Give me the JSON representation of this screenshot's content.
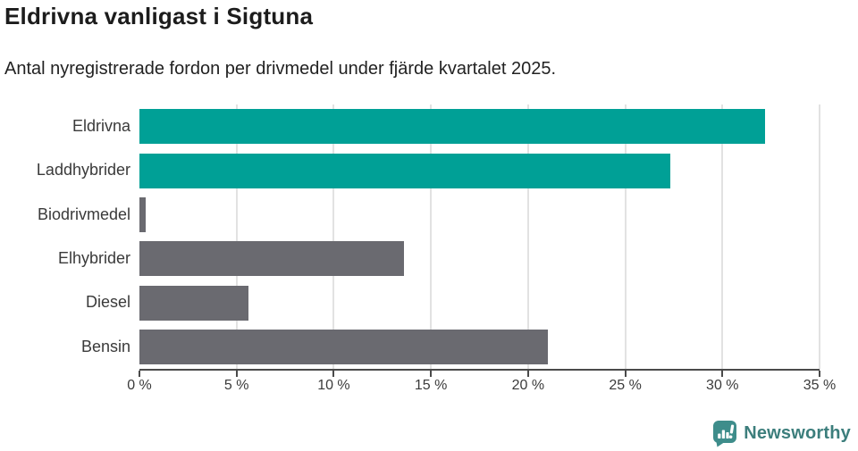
{
  "title": "Eldrivna vanligast i Sigtuna",
  "subtitle": "Antal nyregistrerade fordon per drivmedel under fjärde kvartalet 2025.",
  "chart_data": {
    "type": "bar",
    "orientation": "horizontal",
    "title": "Eldrivna vanligast i Sigtuna",
    "subtitle": "Antal nyregistrerade fordon per drivmedel under fjärde kvartalet 2025.",
    "categories": [
      "Eldrivna",
      "Laddhybrider",
      "Biodrivmedel",
      "Elhybrider",
      "Diesel",
      "Bensin"
    ],
    "values": [
      32.2,
      27.3,
      0.3,
      13.6,
      5.6,
      21.0
    ],
    "unit": "%",
    "xlim": [
      0,
      35
    ],
    "x_ticks": [
      "0 %",
      "5 %",
      "10 %",
      "15 %",
      "20 %",
      "25 %",
      "30 %",
      "35 %"
    ],
    "tick_step": 5,
    "grid": true,
    "bar_colors": [
      "#00a096",
      "#00a096",
      "#6a6a70",
      "#6a6a70",
      "#6a6a70",
      "#6a6a70"
    ],
    "highlight_color": "#00a096",
    "default_color": "#6a6a70",
    "gridline_color": "#e2e2e2",
    "axis_color": "#4a4a4a"
  },
  "footer": {
    "brand": "Newsworthy",
    "brand_color": "#3c7e7c",
    "icon_color": "#3e8d8b",
    "icon": "newsworthy-chart-bubble-icon"
  }
}
